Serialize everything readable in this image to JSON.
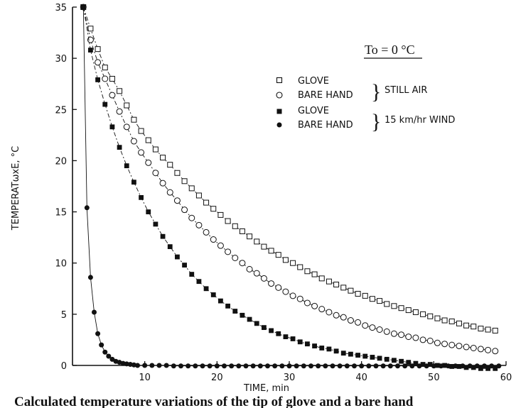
{
  "chart_data": {
    "type": "scatter",
    "condition_label": "To = 0 °C",
    "xlabel": "TIME, min",
    "ylabel": "TEMPERATωxE, °C",
    "caption": "Calculated temperature variations of the tip of glove and a bare hand",
    "xlim": [
      0,
      60
    ],
    "ylim": [
      0,
      35
    ],
    "x_ticks": [
      "10",
      "20",
      "30",
      "40",
      "50",
      "60"
    ],
    "y_ticks": [
      "0",
      "5",
      "10",
      "15",
      "20",
      "25",
      "30",
      "35"
    ],
    "legend_groups": [
      {
        "label": "STILL AIR",
        "entries": [
          "GLOVE",
          "BARE HAND"
        ]
      },
      {
        "label": "15 km/hr WIND",
        "entries": [
          "GLOVE",
          "BARE HAND"
        ]
      }
    ],
    "series": [
      {
        "name": "GLOVE",
        "group": "STILL AIR",
        "marker": "open-square",
        "x": [
          1.5,
          2.5,
          3.5,
          4.5,
          5.5,
          6.5,
          7.5,
          8.5,
          9.5,
          10.5,
          11.5,
          12.5,
          13.5,
          14.5,
          15.5,
          16.5,
          17.5,
          18.5,
          19.5,
          20.5,
          21.5,
          22.5,
          23.5,
          24.5,
          25.5,
          26.5,
          27.5,
          28.5,
          29.5,
          30.5,
          31.5,
          32.5,
          33.5,
          34.5,
          35.5,
          36.5,
          37.5,
          38.5,
          39.5,
          40.5,
          41.5,
          42.5,
          43.5,
          44.5,
          45.5,
          46.5,
          47.5,
          48.5,
          49.5,
          50.5,
          51.5,
          52.5,
          53.5,
          54.5,
          55.5,
          56.5,
          57.5,
          58.5
        ],
        "y": [
          35.0,
          32.9,
          30.9,
          29.1,
          28.0,
          26.8,
          25.4,
          24.0,
          22.9,
          22.0,
          21.1,
          20.3,
          19.6,
          18.8,
          18.0,
          17.3,
          16.6,
          15.9,
          15.3,
          14.7,
          14.1,
          13.6,
          13.1,
          12.6,
          12.1,
          11.6,
          11.2,
          10.8,
          10.3,
          10.0,
          9.6,
          9.2,
          8.9,
          8.5,
          8.2,
          7.9,
          7.6,
          7.3,
          7.0,
          6.8,
          6.5,
          6.3,
          6.0,
          5.8,
          5.6,
          5.4,
          5.2,
          5.0,
          4.8,
          4.6,
          4.4,
          4.3,
          4.1,
          3.9,
          3.8,
          3.6,
          3.5,
          3.4
        ]
      },
      {
        "name": "BARE HAND",
        "group": "STILL AIR",
        "marker": "open-circle",
        "x": [
          1.5,
          2.5,
          3.5,
          4.5,
          5.5,
          6.5,
          7.5,
          8.5,
          9.5,
          10.5,
          11.5,
          12.5,
          13.5,
          14.5,
          15.5,
          16.5,
          17.5,
          18.5,
          19.5,
          20.5,
          21.5,
          22.5,
          23.5,
          24.5,
          25.5,
          26.5,
          27.5,
          28.5,
          29.5,
          30.5,
          31.5,
          32.5,
          33.5,
          34.5,
          35.5,
          36.5,
          37.5,
          38.5,
          39.5,
          40.5,
          41.5,
          42.5,
          43.5,
          44.5,
          45.5,
          46.5,
          47.5,
          48.5,
          49.5,
          50.5,
          51.5,
          52.5,
          53.5,
          54.5,
          55.5,
          56.5,
          57.5,
          58.5
        ],
        "y": [
          35.0,
          31.8,
          29.6,
          28.0,
          26.4,
          24.8,
          23.3,
          21.9,
          20.8,
          19.8,
          18.8,
          17.8,
          16.9,
          16.1,
          15.2,
          14.4,
          13.7,
          13.0,
          12.3,
          11.7,
          11.1,
          10.5,
          10.0,
          9.4,
          9.0,
          8.5,
          8.0,
          7.6,
          7.2,
          6.8,
          6.5,
          6.1,
          5.8,
          5.5,
          5.2,
          4.9,
          4.7,
          4.4,
          4.2,
          3.9,
          3.7,
          3.5,
          3.3,
          3.1,
          3.0,
          2.8,
          2.7,
          2.5,
          2.4,
          2.2,
          2.1,
          2.0,
          1.9,
          1.8,
          1.7,
          1.6,
          1.5,
          1.4
        ]
      },
      {
        "name": "GLOVE",
        "group": "15 km/hr WIND",
        "marker": "filled-square",
        "x": [
          1.5,
          2.5,
          3.5,
          4.5,
          5.5,
          6.5,
          7.5,
          8.5,
          9.5,
          10.5,
          11.5,
          12.5,
          13.5,
          14.5,
          15.5,
          16.5,
          17.5,
          18.5,
          19.5,
          20.5,
          21.5,
          22.5,
          23.5,
          24.5,
          25.5,
          26.5,
          27.5,
          28.5,
          29.5,
          30.5,
          31.5,
          32.5,
          33.5,
          34.5,
          35.5,
          36.5,
          37.5,
          38.5,
          39.5,
          40.5,
          41.5,
          42.5,
          43.5,
          44.5,
          45.5,
          46.5,
          47.5,
          48.5,
          49.5,
          50.5,
          51.5,
          52.5,
          53.5,
          54.5,
          55.5,
          56.5,
          57.5,
          58.5
        ],
        "y": [
          35.0,
          30.8,
          27.9,
          25.5,
          23.3,
          21.3,
          19.5,
          17.9,
          16.4,
          15.0,
          13.8,
          12.6,
          11.6,
          10.6,
          9.8,
          8.9,
          8.2,
          7.5,
          6.9,
          6.3,
          5.8,
          5.3,
          4.9,
          4.5,
          4.1,
          3.7,
          3.4,
          3.1,
          2.8,
          2.6,
          2.3,
          2.1,
          1.9,
          1.7,
          1.6,
          1.4,
          1.2,
          1.1,
          1.0,
          0.9,
          0.8,
          0.7,
          0.6,
          0.5,
          0.4,
          0.3,
          0.2,
          0.1,
          0.1,
          0.0,
          0.0,
          -0.1,
          -0.1,
          -0.2,
          -0.2,
          -0.3,
          -0.3,
          -0.3
        ]
      },
      {
        "name": "BARE HAND",
        "group": "15 km/hr WIND",
        "marker": "filled-circle",
        "x": [
          1.5,
          2.0,
          2.5,
          3.0,
          3.5,
          4.0,
          4.5,
          5.0,
          5.5,
          6.0,
          6.5,
          7.0,
          7.5,
          8.0,
          8.5,
          9.0,
          10.0,
          11.0,
          12.0,
          13.0,
          14.0,
          15.0,
          16.0,
          17.0,
          18.0,
          19.0,
          20.0,
          21.0,
          22.0,
          23.0,
          24.0,
          25.0,
          26.0,
          27.0,
          28.0,
          29.0,
          30.0,
          31.0,
          32.0,
          33.0,
          34.0,
          35.0,
          36.0,
          37.0,
          38.0,
          39.0,
          40.0,
          41.0,
          42.0,
          43.0,
          44.0,
          45.0,
          46.0,
          47.0,
          48.0,
          49.0,
          50.0,
          51.0,
          52.0,
          53.0,
          54.0,
          55.0,
          56.0,
          57.0,
          58.0,
          59.0
        ],
        "y": [
          35.0,
          15.4,
          8.6,
          5.2,
          3.1,
          2.0,
          1.3,
          0.9,
          0.6,
          0.4,
          0.3,
          0.2,
          0.15,
          0.1,
          0.05,
          0.0,
          0.0,
          0.0,
          0.0,
          0.0,
          -0.05,
          -0.05,
          -0.05,
          -0.05,
          -0.05,
          -0.05,
          -0.05,
          -0.05,
          -0.05,
          -0.05,
          -0.05,
          -0.05,
          -0.05,
          -0.05,
          -0.05,
          -0.05,
          -0.05,
          -0.05,
          -0.05,
          -0.05,
          -0.05,
          -0.05,
          -0.05,
          -0.05,
          -0.05,
          -0.05,
          -0.05,
          -0.05,
          -0.05,
          -0.05,
          -0.05,
          -0.05,
          -0.05,
          -0.05,
          -0.05,
          -0.05,
          -0.05,
          -0.05,
          -0.05,
          -0.05,
          -0.05,
          -0.05,
          -0.05,
          -0.05,
          -0.05,
          -0.05
        ]
      }
    ]
  }
}
